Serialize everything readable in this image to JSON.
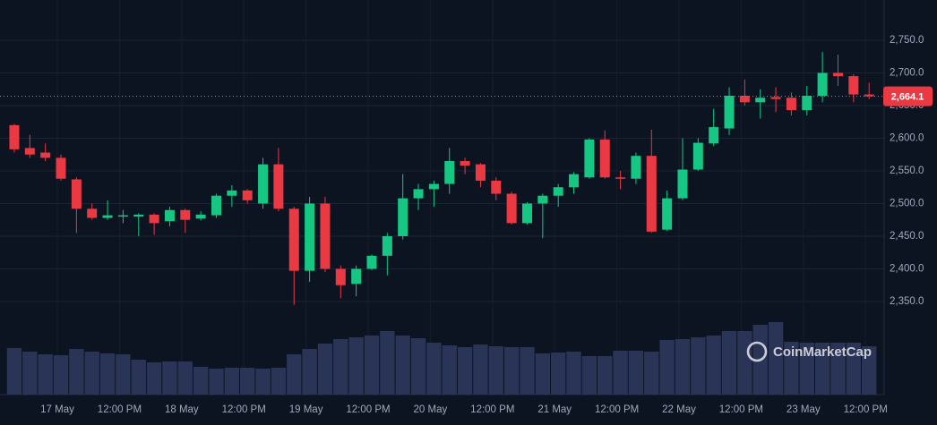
{
  "chart_data": {
    "type": "candlestick",
    "watermark": "CoinMarketCap",
    "colors": {
      "up": "#16c784",
      "down": "#ea3943",
      "volume": "#2a3456"
    },
    "grid": true,
    "xlim": [
      -0.92,
      55.97
    ],
    "ylim": [
      2207.5,
      2811.6
    ],
    "xticks": [
      {
        "value": 2.77,
        "label": "17 May"
      },
      {
        "value": 6.77,
        "label": "12:00 PM"
      },
      {
        "value": 10.77,
        "label": "18 May"
      },
      {
        "value": 14.77,
        "label": "12:00 PM"
      },
      {
        "value": 18.77,
        "label": "19 May"
      },
      {
        "value": 22.77,
        "label": "12:00 PM"
      },
      {
        "value": 26.77,
        "label": "20 May"
      },
      {
        "value": 30.77,
        "label": "12:00 PM"
      },
      {
        "value": 34.77,
        "label": "21 May"
      },
      {
        "value": 38.77,
        "label": "12:00 PM"
      },
      {
        "value": 42.77,
        "label": "22 May"
      },
      {
        "value": 46.77,
        "label": "12:00 PM"
      },
      {
        "value": 50.77,
        "label": "23 May"
      },
      {
        "value": 54.77,
        "label": "12:00 PM"
      }
    ],
    "yticks": [
      {
        "value": 2350,
        "label": "2,350.0"
      },
      {
        "value": 2400,
        "label": "2,400.0"
      },
      {
        "value": 2450,
        "label": "2,450.0"
      },
      {
        "value": 2500,
        "label": "2,500.0"
      },
      {
        "value": 2550,
        "label": "2,550.0"
      },
      {
        "value": 2600,
        "label": "2,600.0"
      },
      {
        "value": 2650,
        "label": "2,650.0"
      },
      {
        "value": 2700,
        "label": "2,700.0"
      },
      {
        "value": 2750,
        "label": "2,750.0"
      }
    ],
    "last_price_label": "2,664.1",
    "open": [
      2620,
      2585,
      2578,
      2570,
      2537,
      2492,
      2478,
      2480,
      2480,
      2483,
      2473,
      2490,
      2477,
      2482,
      2512,
      2520,
      2500,
      2560,
      2492,
      2397,
      2500,
      2400,
      2377,
      2400,
      2420,
      2450,
      2508,
      2522,
      2530,
      2565,
      2560,
      2535,
      2515,
      2470,
      2500,
      2512,
      2525,
      2540,
      2598,
      2540,
      2538,
      2573,
      2460,
      2508,
      2552,
      2592,
      2615,
      2665,
      2655,
      2663,
      2662,
      2643,
      2665,
      2700,
      2695,
      2667
    ],
    "high": [
      2622,
      2605,
      2592,
      2575,
      2540,
      2500,
      2505,
      2490,
      2485,
      2485,
      2495,
      2492,
      2488,
      2515,
      2528,
      2522,
      2570,
      2585,
      2495,
      2510,
      2510,
      2405,
      2405,
      2422,
      2455,
      2545,
      2530,
      2535,
      2585,
      2570,
      2562,
      2540,
      2518,
      2502,
      2515,
      2530,
      2548,
      2600,
      2612,
      2550,
      2578,
      2613,
      2520,
      2600,
      2600,
      2645,
      2678,
      2690,
      2675,
      2678,
      2670,
      2680,
      2732,
      2728,
      2698,
      2685
    ],
    "low": [
      2578,
      2570,
      2565,
      2535,
      2455,
      2475,
      2475,
      2470,
      2450,
      2452,
      2465,
      2455,
      2474,
      2478,
      2495,
      2500,
      2492,
      2488,
      2345,
      2380,
      2395,
      2355,
      2358,
      2398,
      2390,
      2445,
      2490,
      2495,
      2515,
      2545,
      2525,
      2505,
      2468,
      2468,
      2447,
      2495,
      2515,
      2538,
      2538,
      2522,
      2530,
      2455,
      2458,
      2505,
      2550,
      2588,
      2605,
      2650,
      2630,
      2640,
      2635,
      2635,
      2655,
      2680,
      2655,
      2660
    ],
    "close": [
      2583,
      2575,
      2570,
      2538,
      2492,
      2478,
      2482,
      2482,
      2483,
      2470,
      2490,
      2475,
      2483,
      2512,
      2520,
      2505,
      2560,
      2492,
      2397,
      2500,
      2400,
      2375,
      2400,
      2420,
      2450,
      2508,
      2522,
      2530,
      2565,
      2558,
      2535,
      2515,
      2470,
      2500,
      2512,
      2525,
      2545,
      2598,
      2540,
      2538,
      2573,
      2457,
      2508,
      2552,
      2593,
      2617,
      2665,
      2655,
      2662,
      2660,
      2643,
      2665,
      2700,
      2695,
      2667,
      2664.1
    ],
    "volume": [
      52,
      48,
      45,
      44,
      51,
      48,
      46,
      45,
      39,
      36,
      37,
      37,
      31,
      29,
      30,
      30,
      29,
      30,
      45,
      51,
      57,
      62,
      64,
      66,
      71,
      66,
      63,
      58,
      55,
      53,
      56,
      54,
      53,
      53,
      46,
      47,
      48,
      43,
      43,
      49,
      49,
      48,
      61,
      62,
      64,
      66,
      71,
      71,
      78,
      81,
      59,
      58,
      58,
      58,
      58,
      54
    ]
  }
}
